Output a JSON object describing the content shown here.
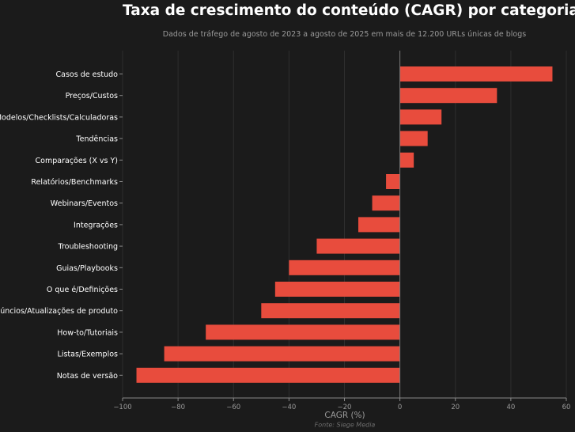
{
  "chart_data": {
    "type": "bar",
    "orientation": "horizontal",
    "title": "Taxa de crescimento do conteúdo (CAGR) por categoria",
    "subtitle": "Dados de tráfego de agosto de 2023 a agosto de 2025 em mais de 12.200 URLs únicas de blogs",
    "xlabel": "CAGR (%)",
    "ylabel": "",
    "source": "Fonte: Siege Media",
    "xlim": [
      -100,
      60
    ],
    "xticks": [
      -100,
      -80,
      -60,
      -40,
      -20,
      0,
      20,
      40,
      60
    ],
    "xtick_labels": [
      "−100",
      "−80",
      "−60",
      "−40",
      "−20",
      "0",
      "20",
      "40",
      "60"
    ],
    "grid": "vertical",
    "categories": [
      "Casos de estudo",
      "Preços/Custos",
      "Modelos/Checklists/Calculadoras",
      "Tendências",
      "Comparações (X vs Y)",
      "Relatórios/Benchmarks",
      "Webinars/Eventos",
      "Integrações",
      "Troubleshooting",
      "Guias/Playbooks",
      "O que é/Definições",
      "Anúncios/Atualizações de produto",
      "How-to/Tutoriais",
      "Listas/Exemplos",
      "Notas de versão"
    ],
    "values": [
      55,
      35,
      15,
      10,
      5,
      -5,
      -10,
      -15,
      -30,
      -40,
      -45,
      -50,
      -70,
      -85,
      -95
    ],
    "colors": {
      "background": "#1b1b1b",
      "bar": "#e84c3d",
      "grid": "#2e2e2e",
      "axis": "#8a8a8a",
      "zero_line": "#777777",
      "label": "#ffffff",
      "muted": "#9a9a9a",
      "source": "#6e6e6e"
    }
  }
}
